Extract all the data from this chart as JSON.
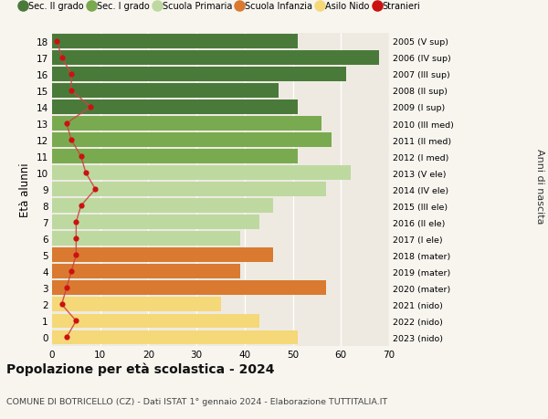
{
  "ages": [
    18,
    17,
    16,
    15,
    14,
    13,
    12,
    11,
    10,
    9,
    8,
    7,
    6,
    5,
    4,
    3,
    2,
    1,
    0
  ],
  "anni_nascita": [
    "2005 (V sup)",
    "2006 (IV sup)",
    "2007 (III sup)",
    "2008 (II sup)",
    "2009 (I sup)",
    "2010 (III med)",
    "2011 (II med)",
    "2012 (I med)",
    "2013 (V ele)",
    "2014 (IV ele)",
    "2015 (III ele)",
    "2016 (II ele)",
    "2017 (I ele)",
    "2018 (mater)",
    "2019 (mater)",
    "2020 (mater)",
    "2021 (nido)",
    "2022 (nido)",
    "2023 (nido)"
  ],
  "bar_values": [
    51,
    68,
    61,
    47,
    51,
    56,
    58,
    51,
    62,
    57,
    46,
    43,
    39,
    46,
    39,
    57,
    35,
    43,
    51
  ],
  "stranieri_values": [
    1,
    2,
    4,
    4,
    8,
    3,
    4,
    6,
    7,
    9,
    6,
    5,
    5,
    5,
    4,
    3,
    2,
    5,
    3
  ],
  "bar_colors": [
    "#4a7a3a",
    "#4a7a3a",
    "#4a7a3a",
    "#4a7a3a",
    "#4a7a3a",
    "#7aaa50",
    "#7aaa50",
    "#7aaa50",
    "#bdd9a0",
    "#bdd9a0",
    "#bdd9a0",
    "#bdd9a0",
    "#bdd9a0",
    "#d97a30",
    "#d97a30",
    "#d97a30",
    "#f5d878",
    "#f5d878",
    "#f5d878"
  ],
  "legend_labels": [
    "Sec. II grado",
    "Sec. I grado",
    "Scuola Primaria",
    "Scuola Infanzia",
    "Asilo Nido",
    "Stranieri"
  ],
  "legend_colors": [
    "#4a7a3a",
    "#7aaa50",
    "#bdd9a0",
    "#d97a30",
    "#f5d878",
    "#cc1111"
  ],
  "title": "Popolazione per età scolastica - 2024",
  "subtitle": "COMUNE DI BOTRICELLO (CZ) - Dati ISTAT 1° gennaio 2024 - Elaborazione TUTTITALIA.IT",
  "ylabel_left": "Età alunni",
  "ylabel_right": "Anni di nascita",
  "xlim": [
    0,
    70
  ],
  "xticks": [
    0,
    10,
    20,
    30,
    40,
    50,
    60,
    70
  ],
  "background_color": "#f8f5ef",
  "bar_background": "#eeeae2",
  "stranieri_color": "#cc1111",
  "stranieri_line_color": "#cc4444"
}
